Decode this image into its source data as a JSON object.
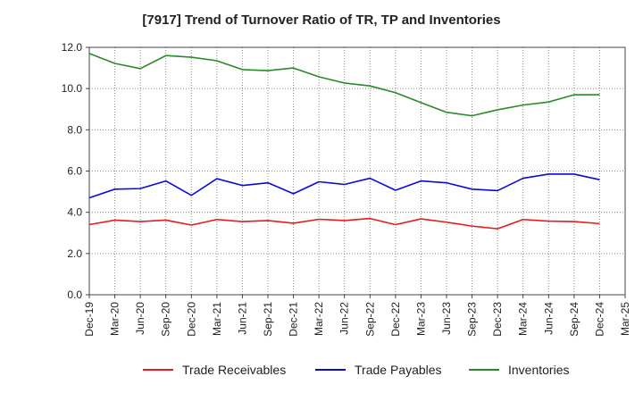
{
  "chart_data": {
    "type": "line",
    "title": "[7917]  Trend of Turnover Ratio of TR, TP and Inventories",
    "xlabel": "",
    "ylabel": "",
    "ylim": [
      0,
      12
    ],
    "yticks": [
      "0.0",
      "2.0",
      "4.0",
      "6.0",
      "8.0",
      "10.0",
      "12.0"
    ],
    "x_ticks": [
      "Dec-19",
      "Mar-20",
      "Jun-20",
      "Sep-20",
      "Dec-20",
      "Mar-21",
      "Jun-21",
      "Sep-21",
      "Dec-21",
      "Mar-22",
      "Jun-22",
      "Sep-22",
      "Dec-22",
      "Mar-23",
      "Jun-23",
      "Sep-23",
      "Dec-23",
      "Mar-24",
      "Jun-24",
      "Sep-24",
      "Dec-24",
      "Mar-25"
    ],
    "categories": [
      "Dec-19",
      "Mar-20",
      "Jun-20",
      "Sep-20",
      "Dec-20",
      "Mar-21",
      "Jun-21",
      "Sep-21",
      "Dec-21",
      "Mar-22",
      "Jun-22",
      "Sep-22",
      "Dec-22",
      "Mar-23",
      "Jun-23",
      "Sep-23",
      "Dec-23",
      "Mar-24",
      "Jun-24",
      "Sep-24",
      "Dec-24"
    ],
    "grid": true,
    "legend_position": "bottom",
    "series": [
      {
        "name": "Trade Receivables",
        "color": "#e8191c",
        "values": [
          3.4,
          3.62,
          3.55,
          3.62,
          3.38,
          3.65,
          3.55,
          3.6,
          3.47,
          3.66,
          3.6,
          3.7,
          3.4,
          3.68,
          3.52,
          3.33,
          3.2,
          3.65,
          3.57,
          3.55,
          3.45
        ]
      },
      {
        "name": "Trade Payables",
        "color": "#0b0bd6",
        "values": [
          4.7,
          5.12,
          5.15,
          5.52,
          4.82,
          5.63,
          5.3,
          5.43,
          4.9,
          5.48,
          5.35,
          5.65,
          5.07,
          5.52,
          5.43,
          5.12,
          5.05,
          5.65,
          5.85,
          5.85,
          5.58
        ]
      },
      {
        "name": "Inventories",
        "color": "#2a8a2a",
        "values": [
          11.7,
          11.22,
          10.97,
          11.6,
          11.52,
          11.35,
          10.92,
          10.87,
          11.0,
          10.57,
          10.27,
          10.13,
          9.8,
          9.32,
          8.85,
          8.68,
          8.97,
          9.2,
          9.35,
          9.7,
          9.7
        ]
      }
    ]
  }
}
